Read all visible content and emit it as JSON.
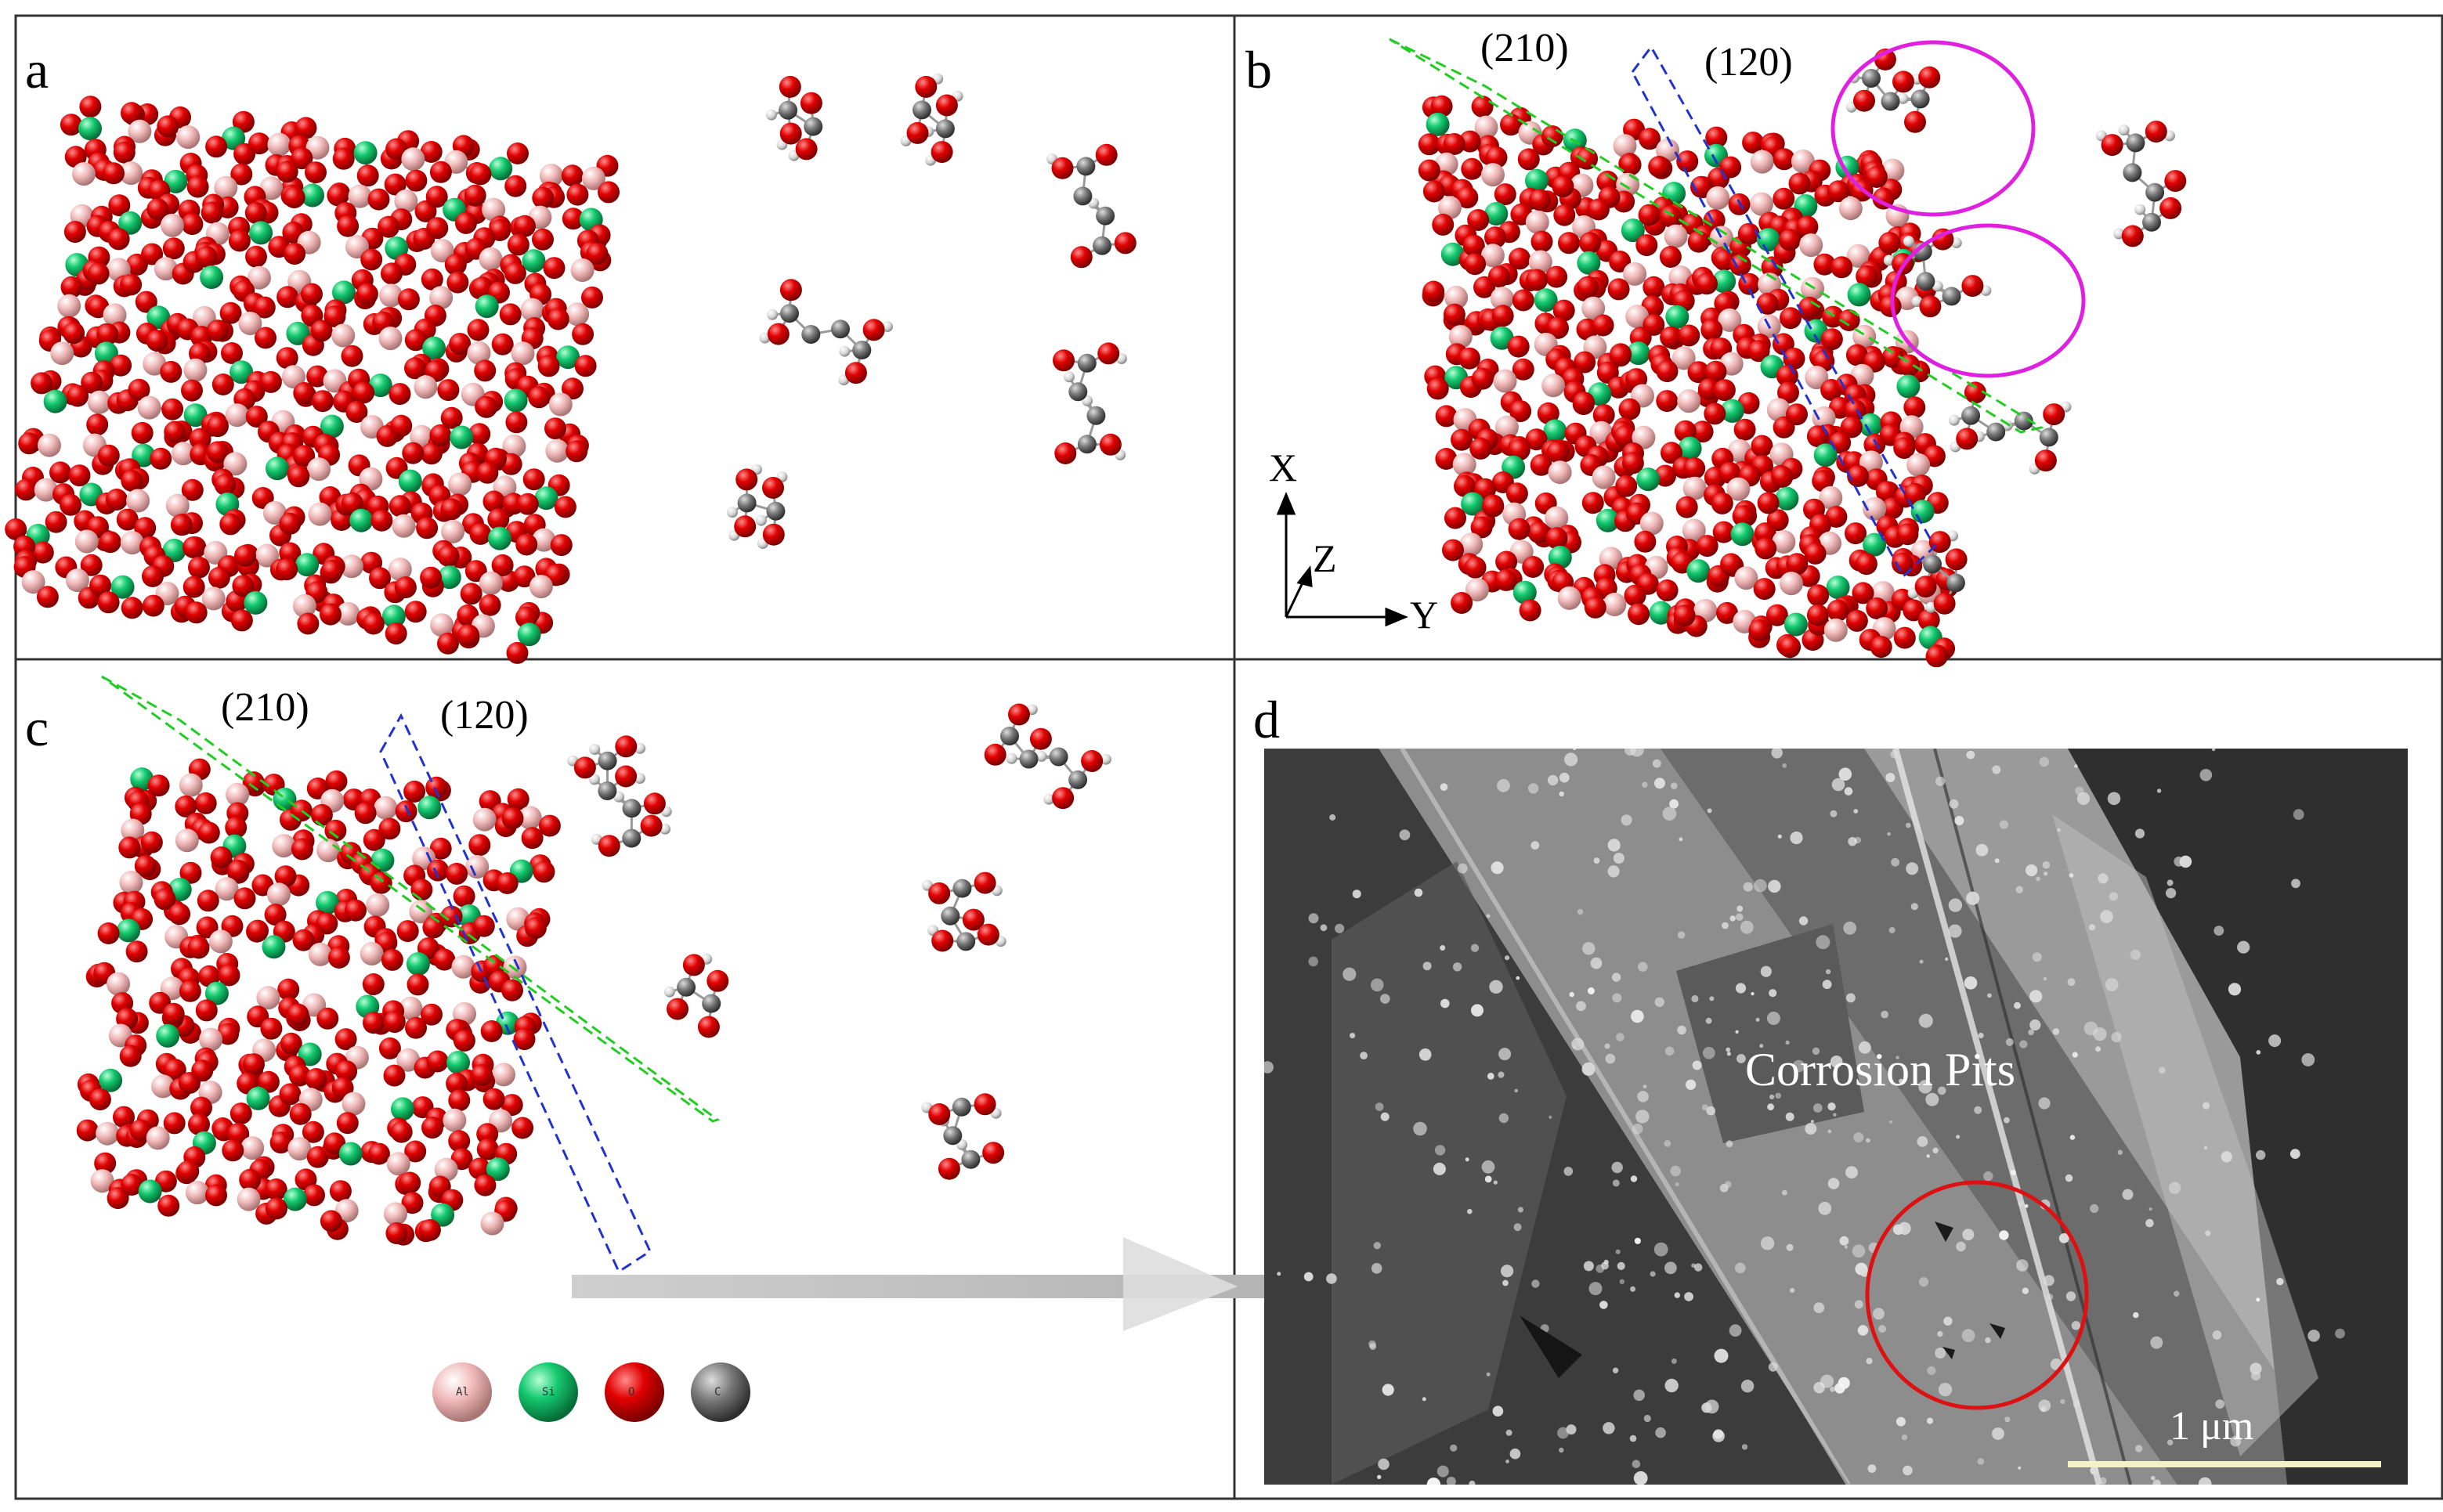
{
  "panels": {
    "a": {
      "label": "a"
    },
    "b": {
      "label": "b",
      "plane_210": "(210)",
      "plane_120": "(120)",
      "axis_x": "X",
      "axis_y": "Y",
      "axis_z": "Z"
    },
    "c": {
      "label": "c",
      "plane_210": "(210)",
      "plane_120": "(120)",
      "legend": [
        {
          "symbol": "Al",
          "color": "#f0b8b8"
        },
        {
          "symbol": "Si",
          "color": "#12c86e"
        },
        {
          "symbol": "O",
          "color": "#e00000"
        },
        {
          "symbol": "C",
          "color": "#7a7a7a"
        }
      ]
    },
    "d": {
      "label": "d",
      "annotation": "Corrosion Pits",
      "scale_bar": "1 μm"
    }
  },
  "colors": {
    "aluminum": "#f2b9b9",
    "silicon": "#12c86e",
    "oxygen": "#dd0000",
    "carbon": "#6e6e6e",
    "hydrogen": "#e6e6e6",
    "plane_210_dash": "#22cc22",
    "plane_120_dash": "#2233cc",
    "highlight_circle": "#e020e0",
    "pit_circle": "#dd1111",
    "scale_bar": "#f4f0c8"
  }
}
